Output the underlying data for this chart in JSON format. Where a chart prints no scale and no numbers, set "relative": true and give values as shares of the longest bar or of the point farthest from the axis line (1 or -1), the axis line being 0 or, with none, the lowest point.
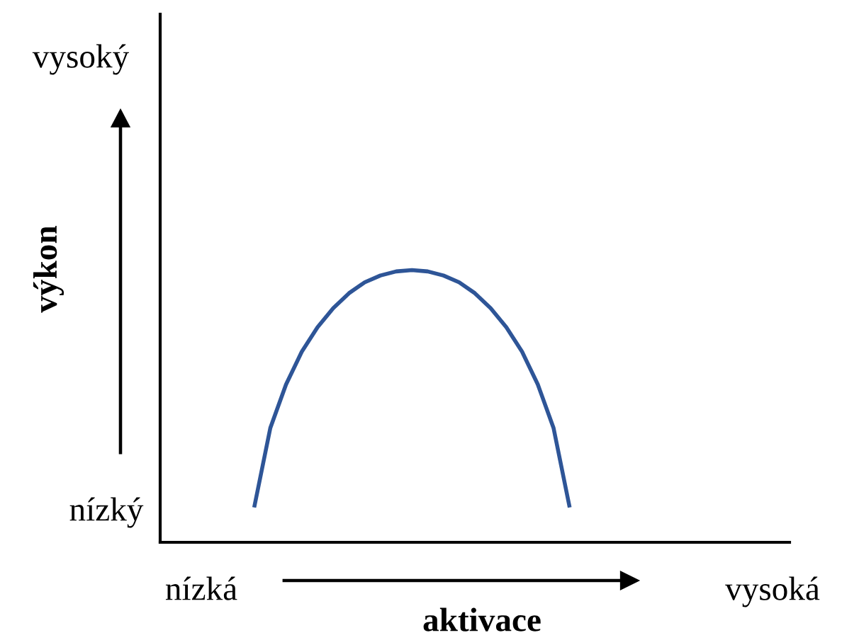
{
  "chart_data": {
    "type": "line",
    "relative": true,
    "xlabel": "aktivace",
    "ylabel": "výkon",
    "categories": [
      null,
      null,
      null,
      null,
      null,
      null,
      null,
      null,
      null,
      null,
      null,
      null,
      null,
      null,
      null,
      null,
      null,
      null,
      null,
      null,
      null,
      null,
      null,
      null,
      null,
      null,
      null,
      null,
      null,
      null,
      null,
      null,
      null,
      null,
      null,
      null,
      null,
      null,
      null,
      null,
      null
    ],
    "series": [
      {
        "color": "#2e5597",
        "values": [
          null,
          null,
          null,
          null,
          null,
          null,
          0.135,
          0.42,
          0.58,
          0.7,
          0.79,
          0.86,
          0.915,
          0.955,
          0.98,
          0.995,
          1.0,
          0.995,
          0.98,
          0.955,
          0.915,
          0.86,
          0.79,
          0.7,
          0.58,
          0.42,
          0.135,
          null,
          null,
          null,
          null,
          null,
          null,
          null,
          null,
          null,
          null,
          null,
          null,
          null,
          null
        ]
      }
    ],
    "annotations": [
      "nízký",
      "vysoký",
      "nízká",
      "vysoká"
    ],
    "marker": "none",
    "line_style": "solid",
    "grid": false,
    "legend": false
  }
}
